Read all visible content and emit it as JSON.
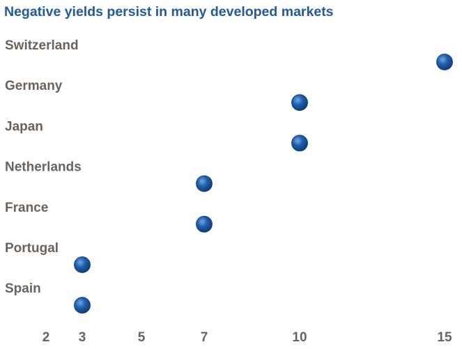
{
  "title": "Negative yields persist in many developed markets",
  "colors": {
    "title": "#1f5a9c",
    "labels": "#6b625c",
    "track_light": "#d9d4ce",
    "track_dark": "#938a83",
    "marker": "#1f5ea8"
  },
  "chart_data": {
    "type": "scatter",
    "title": "Negative yields persist in many developed markets",
    "xlabel": "",
    "ylabel": "",
    "x_ticks": [
      2,
      3,
      5,
      7,
      10,
      15
    ],
    "grid": false,
    "categories": [
      "Switzerland",
      "Germany",
      "Japan",
      "Netherlands",
      "France",
      "Portugal",
      "Spain"
    ],
    "values": [
      15,
      10,
      10,
      7,
      7,
      3,
      3
    ]
  }
}
